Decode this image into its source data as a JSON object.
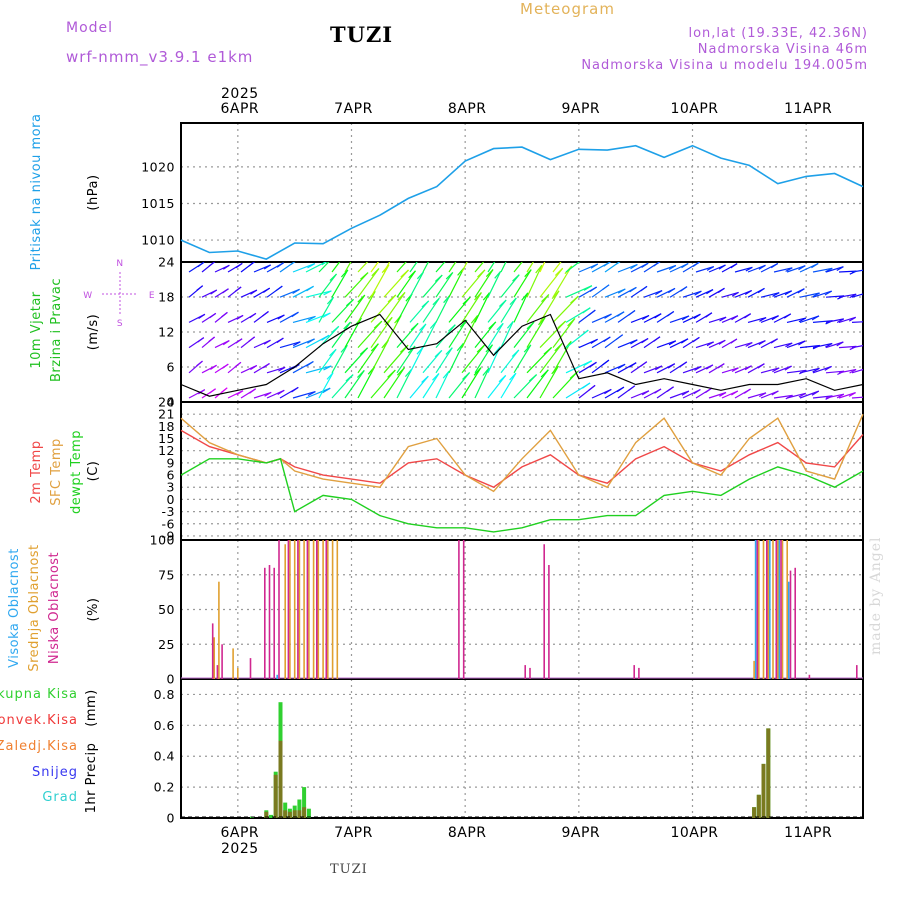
{
  "header": {
    "station": "TUZI",
    "meteogram_label": "Meteogram",
    "model_label": "Model",
    "model_name": "wrf-nmm_v3.9.1  e1km",
    "location_lines": [
      "lon,lat (19.33E, 42.36N)",
      "Nadmorska Visina 46m",
      "Nadmorska Visina u modelu 194.005m"
    ]
  },
  "footer": {
    "station": "TUZI",
    "watermark": "made by Angel"
  },
  "colors": {
    "pressure": "#1ea0e8",
    "temp2m": "#f04848",
    "sfc_temp": "#e0a040",
    "dewpoint": "#20d020",
    "high_cloud": "#30a8f0",
    "mid_cloud": "#e0a030",
    "low_cloud": "#d02890",
    "total_precip": "#30d030",
    "convective": "#f03838",
    "freezing": "#f08030",
    "snow": "#3838f0",
    "hail": "#30d0d0",
    "precip_bar": "#7a7a20",
    "label": "#c050e0"
  },
  "time_axis": {
    "year": "2025",
    "days": [
      "6APR",
      "7APR",
      "8APR",
      "9APR",
      "10APR",
      "11APR"
    ],
    "start": "2025-04-05T12:00",
    "end": "2025-04-11T12:00"
  },
  "chart_data": [
    {
      "type": "line",
      "panel": "pressure",
      "ylabel_left": "Pritisak na nivou mora",
      "unit": "(hPa)",
      "yticks": [
        1010,
        1015,
        1020
      ],
      "ylim": [
        1007,
        1026
      ],
      "grid": true,
      "series": [
        {
          "name": "Pritisak na nivou mora",
          "x": [
            "2025-04-05T12:00",
            "2025-04-05T18:00",
            "2025-04-06T00:00",
            "2025-04-06T06:00",
            "2025-04-06T12:00",
            "2025-04-06T18:00",
            "2025-04-07T00:00",
            "2025-04-07T06:00",
            "2025-04-07T12:00",
            "2025-04-07T18:00",
            "2025-04-08T00:00",
            "2025-04-08T06:00",
            "2025-04-08T12:00",
            "2025-04-08T18:00",
            "2025-04-09T00:00",
            "2025-04-09T06:00",
            "2025-04-09T12:00",
            "2025-04-09T18:00",
            "2025-04-10T00:00",
            "2025-04-10T06:00",
            "2025-04-10T12:00",
            "2025-04-10T18:00",
            "2025-04-11T00:00",
            "2025-04-11T06:00",
            "2025-04-11T12:00"
          ],
          "y": [
            1010.0,
            1008.3,
            1008.5,
            1007.4,
            1009.6,
            1009.5,
            1011.6,
            1013.4,
            1015.7,
            1017.3,
            1020.8,
            1022.5,
            1022.7,
            1021.0,
            1022.4,
            1022.3,
            1022.9,
            1021.3,
            1022.9,
            1021.2,
            1020.2,
            1017.7,
            1018.7,
            1019.1,
            1017.3
          ]
        }
      ]
    },
    {
      "type": "line",
      "panel": "wind",
      "ylabel_left": [
        "10m Vjetar",
        "Brzina i Pravac"
      ],
      "unit": "(m/s)",
      "compass": {
        "north": "N",
        "south": "S",
        "east": "E",
        "west": "W"
      },
      "yticks": [
        0,
        6,
        12,
        18,
        24
      ],
      "ylim": [
        0,
        24
      ],
      "grid": true,
      "series": [
        {
          "name": "Brzina",
          "x": [
            "2025-04-05T12:00",
            "2025-04-05T18:00",
            "2025-04-06T00:00",
            "2025-04-06T06:00",
            "2025-04-06T12:00",
            "2025-04-06T18:00",
            "2025-04-07T00:00",
            "2025-04-07T06:00",
            "2025-04-07T12:00",
            "2025-04-07T18:00",
            "2025-04-08T00:00",
            "2025-04-08T06:00",
            "2025-04-08T12:00",
            "2025-04-08T18:00",
            "2025-04-09T00:00",
            "2025-04-09T06:00",
            "2025-04-09T12:00",
            "2025-04-09T18:00",
            "2025-04-10T00:00",
            "2025-04-10T06:00",
            "2025-04-10T12:00",
            "2025-04-10T18:00",
            "2025-04-11T00:00",
            "2025-04-11T06:00",
            "2025-04-11T12:00"
          ],
          "y": [
            3,
            1,
            2,
            3,
            6,
            10,
            13,
            15,
            9,
            10,
            14,
            8,
            13,
            15,
            4,
            5,
            3,
            4,
            3,
            2,
            3,
            3,
            4,
            2,
            3
          ]
        }
      ]
    },
    {
      "type": "line",
      "panel": "temperature",
      "ylabel_left": [
        "2m Temp",
        "SFC Temp",
        "dewpt Temp"
      ],
      "unit": "(C)",
      "yticks": [
        -9,
        -6,
        -3,
        0,
        3,
        6,
        9,
        12,
        15,
        18,
        21,
        24
      ],
      "ylim": [
        -10,
        24
      ],
      "grid": true,
      "x": [
        "2025-04-05T12:00",
        "2025-04-05T18:00",
        "2025-04-06T00:00",
        "2025-04-06T06:00",
        "2025-04-06T09:00",
        "2025-04-06T12:00",
        "2025-04-06T18:00",
        "2025-04-07T00:00",
        "2025-04-07T06:00",
        "2025-04-07T12:00",
        "2025-04-07T18:00",
        "2025-04-08T00:00",
        "2025-04-08T06:00",
        "2025-04-08T12:00",
        "2025-04-08T18:00",
        "2025-04-09T00:00",
        "2025-04-09T06:00",
        "2025-04-09T12:00",
        "2025-04-09T18:00",
        "2025-04-10T00:00",
        "2025-04-10T06:00",
        "2025-04-10T12:00",
        "2025-04-10T18:00",
        "2025-04-11T00:00",
        "2025-04-11T06:00",
        "2025-04-11T12:00"
      ],
      "series": [
        {
          "name": "2m Temp",
          "y": [
            17,
            13,
            11,
            9,
            10,
            8,
            6,
            5,
            4,
            9,
            10,
            6,
            3,
            8,
            11,
            6,
            4,
            10,
            13,
            9,
            7,
            11,
            14,
            9,
            8,
            16
          ]
        },
        {
          "name": "SFC Temp",
          "y": [
            20,
            14,
            11,
            9,
            10,
            7,
            5,
            4,
            3,
            13,
            15,
            6,
            2,
            10,
            17,
            6,
            3,
            14,
            20,
            9,
            6,
            15,
            20,
            7,
            5,
            21
          ]
        },
        {
          "name": "dewpt Temp",
          "y": [
            6,
            10,
            10,
            9,
            10,
            -3,
            1,
            0,
            -4,
            -6,
            -7,
            -7,
            -8,
            -7,
            -5,
            -5,
            -4,
            -4,
            1,
            2,
            1,
            5,
            8,
            6,
            3,
            7
          ]
        }
      ]
    },
    {
      "type": "bar",
      "panel": "clouds",
      "ylabel_left": [
        "Visoka Oblacnost",
        "Srednja Oblacnost",
        "Niska Oblacnost"
      ],
      "unit": "(%)",
      "yticks": [
        0,
        25,
        50,
        75,
        100
      ],
      "ylim": [
        0,
        100
      ],
      "grid": true,
      "series": [
        {
          "name": "Visoka Oblacnost",
          "x": [
            "2025-04-06T08:00",
            "2025-04-10T13:00",
            "2025-04-10T16:00",
            "2025-04-10T18:00",
            "2025-04-10T20:00"
          ],
          "values": [
            3,
            100,
            100,
            100,
            70
          ]
        },
        {
          "name": "Srednja Oblacnost",
          "x": [
            "2025-04-05T19:00",
            "2025-04-05T20:00",
            "2025-04-05T23:00",
            "2025-04-06T00:00",
            "2025-04-06T10:00",
            "2025-04-06T11:00",
            "2025-04-06T12:00",
            "2025-04-06T13:00",
            "2025-04-06T14:00",
            "2025-04-06T15:00",
            "2025-04-06T16:00",
            "2025-04-06T17:00",
            "2025-04-06T18:00",
            "2025-04-06T19:00",
            "2025-04-06T20:00",
            "2025-04-06T21:00",
            "2025-04-10T13:00",
            "2025-04-10T14:00",
            "2025-04-10T15:00",
            "2025-04-10T16:00",
            "2025-04-10T17:00",
            "2025-04-10T18:00",
            "2025-04-10T19:00",
            "2025-04-10T20:00"
          ],
          "values": [
            30,
            70,
            22,
            8,
            97,
            100,
            100,
            100,
            100,
            100,
            100,
            100,
            100,
            100,
            100,
            100,
            13,
            100,
            100,
            100,
            100,
            100,
            100,
            100
          ]
        },
        {
          "name": "Niska Oblacnost",
          "x": [
            "2025-04-05T19:00",
            "2025-04-05T20:00",
            "2025-04-05T21:00",
            "2025-04-06T03:00",
            "2025-04-06T06:00",
            "2025-04-06T07:00",
            "2025-04-06T08:00",
            "2025-04-06T09:00",
            "2025-04-06T11:00",
            "2025-04-06T13:00",
            "2025-04-06T15:00",
            "2025-04-06T17:00",
            "2025-04-06T19:00",
            "2025-04-07T23:00",
            "2025-04-08T00:00",
            "2025-04-08T13:00",
            "2025-04-08T14:00",
            "2025-04-08T17:00",
            "2025-04-08T18:00",
            "2025-04-09T12:00",
            "2025-04-09T13:00",
            "2025-04-10T14:00",
            "2025-04-10T16:00",
            "2025-04-10T18:00",
            "2025-04-10T19:00",
            "2025-04-10T21:00",
            "2025-04-10T22:00",
            "2025-04-11T01:00",
            "2025-04-11T11:00"
          ],
          "values": [
            40,
            10,
            25,
            15,
            80,
            82,
            80,
            100,
            100,
            100,
            100,
            100,
            100,
            100,
            100,
            10,
            8,
            97,
            82,
            10,
            8,
            100,
            100,
            100,
            100,
            78,
            80,
            3,
            10
          ]
        }
      ]
    },
    {
      "type": "bar",
      "panel": "precipitation",
      "ylabel_left": "1hr Precip",
      "unit": "(mm)",
      "legend": [
        "Ukupna Kisa",
        "Konvek.Kisa",
        "Zaledj.Kisa",
        "Snijeg",
        "Grad"
      ],
      "yticks": [
        0,
        0.2,
        0.4,
        0.6,
        0.8
      ],
      "ylim": [
        0,
        0.9
      ],
      "grid": true,
      "series": [
        {
          "name": "Ukupna Kisa",
          "x": [
            "2025-04-06T03:00",
            "2025-04-06T06:00",
            "2025-04-06T07:00",
            "2025-04-06T08:00",
            "2025-04-06T09:00",
            "2025-04-06T10:00",
            "2025-04-06T11:00",
            "2025-04-06T12:00",
            "2025-04-06T13:00",
            "2025-04-06T14:00",
            "2025-04-06T15:00",
            "2025-04-10T13:00",
            "2025-04-10T14:00",
            "2025-04-10T15:00",
            "2025-04-10T16:00"
          ],
          "values": [
            0.01,
            0.05,
            0.02,
            0.3,
            0.75,
            0.1,
            0.06,
            0.08,
            0.12,
            0.2,
            0.06,
            0.07,
            0.15,
            0.35,
            0.58
          ]
        },
        {
          "name": "Konvek.Kisa",
          "x": [
            "2025-04-06T06:00",
            "2025-04-06T08:00",
            "2025-04-06T09:00",
            "2025-04-06T10:00",
            "2025-04-06T11:00",
            "2025-04-06T12:00",
            "2025-04-06T13:00",
            "2025-04-06T14:00",
            "2025-04-10T13:00",
            "2025-04-10T14:00",
            "2025-04-10T15:00",
            "2025-04-10T16:00"
          ],
          "values": [
            0.04,
            0.28,
            0.5,
            0.05,
            0.04,
            0.05,
            0.05,
            0.07,
            0.07,
            0.15,
            0.35,
            0.58
          ]
        }
      ]
    }
  ]
}
